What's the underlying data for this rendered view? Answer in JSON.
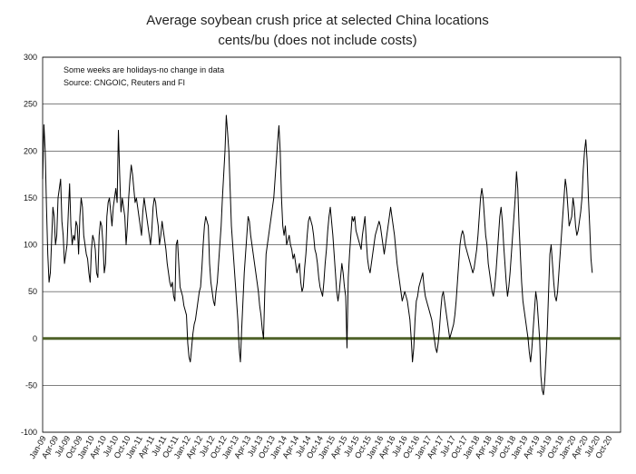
{
  "chart_data": {
    "type": "line",
    "title": "Average soybean crush price at selected China locations",
    "subtitle": "cents/bu (does not include costs)",
    "notes": [
      "Some weeks are holidays-no change in data",
      "Source: CNGOIC, Reuters and FI"
    ],
    "ylim": [
      -100,
      300
    ],
    "y_ticks": [
      -100,
      -50,
      0,
      50,
      100,
      150,
      200,
      250,
      300
    ],
    "grid": true,
    "x_ticks": [
      "Jan-09",
      "Apr-09",
      "Jul-09",
      "Oct-09",
      "Jan-10",
      "Apr-10",
      "Jul-10",
      "Oct-10",
      "Jan-11",
      "Apr-11",
      "Jul-11",
      "Oct-11",
      "Jan-12",
      "Apr-12",
      "Jul-12",
      "Oct-12",
      "Jan-13",
      "Apr-13",
      "Jul-13",
      "Oct-13",
      "Jan-14",
      "Apr-14",
      "Jul-14",
      "Oct-14",
      "Jan-15",
      "Apr-15",
      "Jul-15",
      "Oct-15",
      "Jan-16",
      "Apr-16",
      "Jul-16",
      "Oct-16",
      "Jan-17",
      "Apr-17",
      "Jul-17",
      "Oct-17",
      "Jan-18",
      "Apr-18",
      "Jul-18",
      "Oct-18",
      "Jan-19",
      "Apr-19",
      "Jul-19",
      "Oct-19",
      "Jan-20",
      "Apr-20",
      "Jul-20",
      "Oct-20"
    ],
    "zero_line_color": "#4f6228",
    "series_color": "#000000",
    "series": [
      {
        "values": [
          170,
          228,
          200,
          140,
          90,
          60,
          70,
          105,
          140,
          130,
          100,
          110,
          150,
          160,
          170,
          125,
          110,
          80,
          90,
          100,
          135,
          165,
          120,
          100,
          110,
          105,
          125,
          120,
          90,
          130,
          150,
          140,
          110,
          100,
          90,
          85,
          70,
          60,
          95,
          110,
          105,
          95,
          70,
          65,
          110,
          125,
          120,
          100,
          70,
          80,
          130,
          145,
          150,
          135,
          120,
          140,
          150,
          160,
          145,
          222,
          175,
          135,
          150,
          140,
          130,
          100,
          120,
          150,
          170,
          185,
          175,
          160,
          145,
          150,
          140,
          130,
          120,
          110,
          135,
          150,
          140,
          130,
          120,
          110,
          100,
          115,
          140,
          150,
          145,
          130,
          120,
          100,
          110,
          125,
          115,
          105,
          95,
          80,
          70,
          60,
          55,
          60,
          45,
          40,
          100,
          105,
          80,
          55,
          50,
          45,
          35,
          30,
          25,
          -5,
          -20,
          -25,
          -10,
          5,
          15,
          20,
          30,
          40,
          50,
          55,
          75,
          100,
          120,
          130,
          125,
          120,
          80,
          60,
          50,
          40,
          35,
          50,
          60,
          80,
          100,
          120,
          150,
          175,
          200,
          238,
          220,
          200,
          160,
          120,
          100,
          80,
          60,
          40,
          20,
          -10,
          -25,
          10,
          40,
          70,
          90,
          110,
          130,
          125,
          110,
          100,
          90,
          80,
          70,
          60,
          50,
          35,
          25,
          10,
          0,
          50,
          90,
          100,
          110,
          120,
          130,
          140,
          150,
          170,
          190,
          210,
          227,
          200,
          150,
          120,
          110,
          120,
          100,
          105,
          110,
          100,
          95,
          85,
          90,
          80,
          70,
          75,
          80,
          60,
          50,
          55,
          75,
          90,
          110,
          125,
          130,
          125,
          120,
          110,
          95,
          90,
          80,
          65,
          55,
          50,
          45,
          60,
          80,
          95,
          115,
          130,
          140,
          125,
          110,
          90,
          70,
          50,
          40,
          50,
          65,
          80,
          70,
          55,
          45,
          -10,
          65,
          90,
          110,
          130,
          125,
          130,
          115,
          110,
          105,
          100,
          95,
          110,
          120,
          130,
          105,
          85,
          75,
          70,
          80,
          90,
          100,
          110,
          115,
          120,
          125,
          120,
          110,
          100,
          90,
          100,
          110,
          120,
          130,
          140,
          130,
          120,
          110,
          95,
          80,
          70,
          60,
          50,
          40,
          45,
          50,
          45,
          40,
          30,
          20,
          0,
          -25,
          -10,
          20,
          40,
          45,
          55,
          60,
          65,
          70,
          55,
          45,
          40,
          35,
          30,
          25,
          20,
          10,
          0,
          -10,
          -15,
          -5,
          10,
          30,
          45,
          50,
          40,
          30,
          20,
          10,
          0,
          5,
          10,
          15,
          25,
          40,
          60,
          80,
          100,
          110,
          115,
          110,
          100,
          95,
          90,
          85,
          80,
          75,
          70,
          75,
          85,
          95,
          110,
          130,
          150,
          160,
          150,
          130,
          110,
          100,
          80,
          70,
          60,
          50,
          45,
          55,
          70,
          90,
          110,
          130,
          140,
          125,
          100,
          80,
          60,
          45,
          55,
          70,
          90,
          110,
          130,
          150,
          178,
          160,
          120,
          90,
          60,
          40,
          30,
          20,
          10,
          0,
          -15,
          -25,
          -10,
          10,
          30,
          50,
          40,
          20,
          0,
          -40,
          -55,
          -60,
          -45,
          -20,
          10,
          50,
          90,
          100,
          80,
          60,
          45,
          40,
          50,
          70,
          90,
          110,
          130,
          150,
          170,
          160,
          140,
          120,
          125,
          130,
          150,
          140,
          120,
          110,
          115,
          125,
          135,
          150,
          180,
          200,
          212,
          190,
          150,
          120,
          85,
          70
        ]
      }
    ]
  }
}
